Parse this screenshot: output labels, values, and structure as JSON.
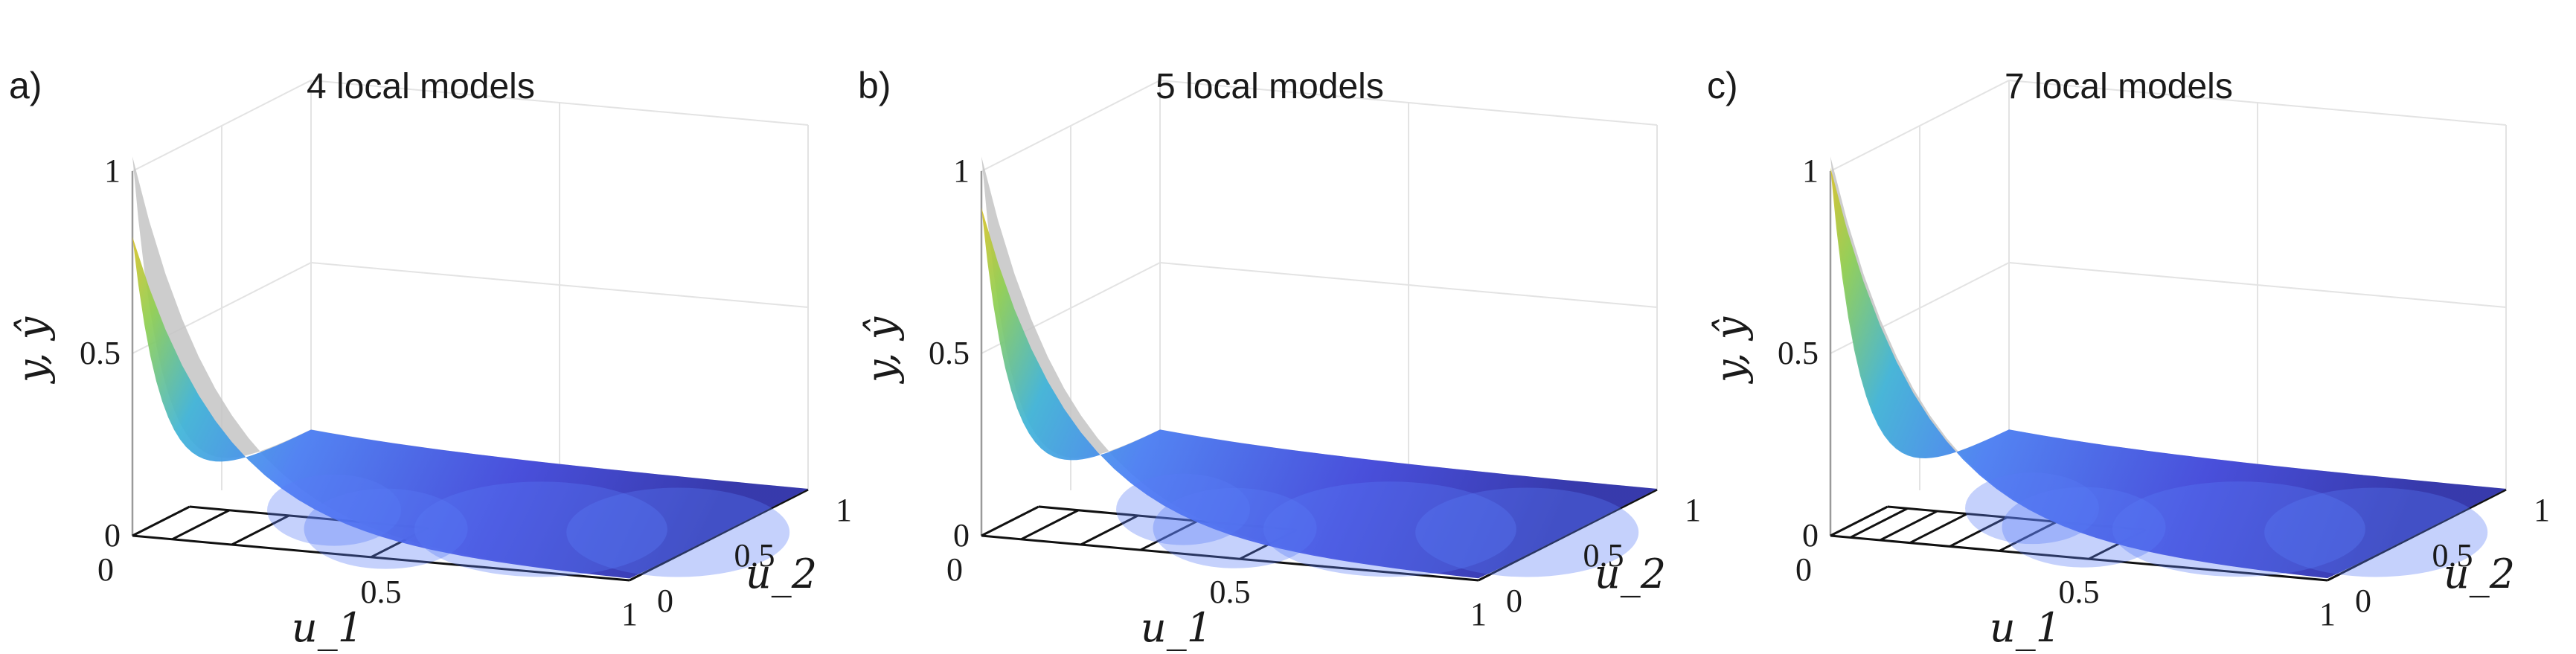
{
  "chart_data": [
    {
      "type": "surface3d",
      "panel_label": "a)",
      "title": "4 local models",
      "xlabel": "u_1",
      "ylabel": "u_2",
      "zlabel": "y, ŷ",
      "xlim": [
        0,
        1
      ],
      "ylim": [
        0,
        1
      ],
      "zlim": [
        0,
        1
      ],
      "x_ticks": [
        "0",
        "0.5",
        "1"
      ],
      "y_ticks": [
        "0",
        "0.5",
        "1"
      ],
      "z_ticks": [
        "0",
        "0.5",
        "1"
      ],
      "grid": true,
      "partition_lines_u1": [
        0.08,
        0.2,
        0.48
      ],
      "series": [
        {
          "values": {
            "y_at_u1_0_u2_0": 1.0,
            "y_at_u1_1_u2_0": 0.02,
            "y_at_u1_0_u2_1": 0.04,
            "y_at_u1_1_u2_1": 0.0
          }
        },
        {
          "values": {
            "y_hat_at_u1_0_u2_0": 0.78,
            "y_hat_at_u1_1_u2_0": 0.0,
            "y_hat_at_u1_0_u2_1": 0.06,
            "y_hat_at_u1_1_u2_1": 0.0
          }
        }
      ]
    },
    {
      "type": "surface3d",
      "panel_label": "b)",
      "title": "5 local models",
      "xlabel": "u_1",
      "ylabel": "u_2",
      "zlabel": "y, ŷ",
      "xlim": [
        0,
        1
      ],
      "ylim": [
        0,
        1
      ],
      "zlim": [
        0,
        1
      ],
      "x_ticks": [
        "0",
        "0.5",
        "1"
      ],
      "y_ticks": [
        "0",
        "0.5",
        "1"
      ],
      "z_ticks": [
        "0",
        "0.5",
        "1"
      ],
      "grid": true,
      "partition_lines_u1": [
        0.08,
        0.2,
        0.32,
        0.52
      ],
      "series": [
        {
          "values": {
            "y_at_u1_0_u2_0": 1.0,
            "y_at_u1_1_u2_0": 0.02,
            "y_at_u1_0_u2_1": 0.04,
            "y_at_u1_1_u2_1": 0.0
          }
        },
        {
          "values": {
            "y_hat_at_u1_0_u2_0": 0.86,
            "y_hat_at_u1_1_u2_0": 0.0,
            "y_hat_at_u1_0_u2_1": 0.05,
            "y_hat_at_u1_1_u2_1": 0.0
          }
        }
      ]
    },
    {
      "type": "surface3d",
      "panel_label": "c)",
      "title": "7 local models",
      "xlabel": "u_1",
      "ylabel": "u_2",
      "zlabel": "y, ŷ",
      "xlim": [
        0,
        1
      ],
      "ylim": [
        0,
        1
      ],
      "zlim": [
        0,
        1
      ],
      "x_ticks": [
        "0",
        "0.5",
        "1"
      ],
      "y_ticks": [
        "0",
        "0.5",
        "1"
      ],
      "z_ticks": [
        "0",
        "0.5",
        "1"
      ],
      "grid": true,
      "partition_lines_u1": [
        0.04,
        0.1,
        0.16,
        0.24,
        0.34,
        0.52
      ],
      "series": [
        {
          "values": {
            "y_at_u1_0_u2_0": 1.0,
            "y_at_u1_1_u2_0": 0.02,
            "y_at_u1_0_u2_1": 0.04,
            "y_at_u1_1_u2_1": 0.0
          }
        },
        {
          "values": {
            "y_hat_at_u1_0_u2_0": 0.97,
            "y_hat_at_u1_1_u2_0": 0.0,
            "y_hat_at_u1_0_u2_1": 0.05,
            "y_hat_at_u1_1_u2_1": 0.0
          }
        }
      ]
    }
  ]
}
